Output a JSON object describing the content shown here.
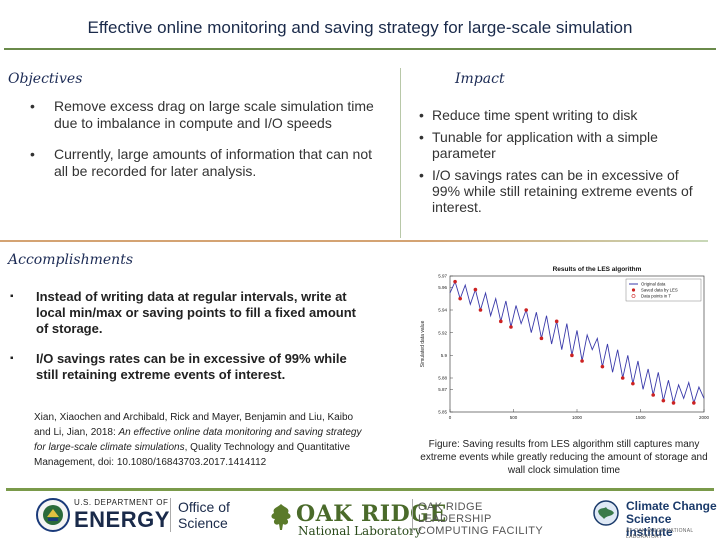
{
  "title": "Effective online monitoring and saving strategy for large-scale simulation",
  "objectives": {
    "heading": "Objectives",
    "items": [
      "Remove excess drag on large scale simulation time due to imbalance in compute and I/O speeds",
      "Currently, large amounts of information that can not all be recorded for later analysis."
    ]
  },
  "impact": {
    "heading": "Impact",
    "items": [
      "Reduce time spent writing to disk",
      "Tunable for application with a simple parameter",
      "I/O savings rates can be in excessive of 99% while still retaining extreme events of interest."
    ]
  },
  "accomplishments": {
    "heading": "Accomplishments",
    "items": [
      "Instead of writing data at regular intervals, write at local min/max or saving points to fill a fixed amount of storage.",
      "I/O savings rates can be in excessive of 99% while still retaining extreme events of interest."
    ],
    "citation": {
      "authors": "Xian, Xiaochen and Archibald, Rick and Mayer, Benjamin and Liu, Kaibo and Li, Jian, 2018: ",
      "title": "An effective online data monitoring and saving strategy for large-scale climate simulations",
      "rest": ", Quality Technology and Quantitative Management, doi: 10.1080/16843703.2017.1414112"
    }
  },
  "figure": {
    "caption": "Figure: Saving results from LES algorithm still captures many extreme events while greatly reducing the amount of storage and wall clock simulation time"
  },
  "chart_data": {
    "type": "line",
    "title": "Results of the LES algorithm",
    "ylabel": "Simulated data value",
    "xlabel": "",
    "xlim": [
      0,
      2000
    ],
    "ylim": [
      5.85,
      5.97
    ],
    "xticks": [
      "0",
      "500",
      "1000",
      "1500",
      "2000"
    ],
    "yticks": [
      "5.85",
      "5.87",
      "5.88",
      "5.9",
      "5.92",
      "5.94",
      "5.96",
      "5.97"
    ],
    "legend": [
      "Original data",
      "Saved data by LES",
      "Data points in T"
    ],
    "legend_position": "top-right",
    "colors": {
      "original": "#3a3aaa",
      "saved": "#cc2222",
      "t_points": "#cc2222"
    },
    "series": [
      {
        "name": "Original data",
        "x": [
          0,
          40,
          80,
          120,
          160,
          200,
          240,
          280,
          320,
          360,
          400,
          440,
          480,
          520,
          560,
          600,
          640,
          680,
          720,
          760,
          800,
          840,
          880,
          920,
          960,
          1000,
          1040,
          1080,
          1120,
          1160,
          1200,
          1240,
          1280,
          1320,
          1360,
          1400,
          1440,
          1480,
          1520,
          1560,
          1600,
          1640,
          1680,
          1720,
          1760,
          1800,
          1840,
          1880,
          1920,
          1960,
          2000
        ],
        "y": [
          5.955,
          5.965,
          5.95,
          5.962,
          5.945,
          5.958,
          5.94,
          5.955,
          5.935,
          5.95,
          5.93,
          5.948,
          5.925,
          5.944,
          5.928,
          5.94,
          5.92,
          5.938,
          5.915,
          5.935,
          5.91,
          5.93,
          5.905,
          5.928,
          5.9,
          5.922,
          5.895,
          5.918,
          5.905,
          5.915,
          5.89,
          5.91,
          5.885,
          5.905,
          5.88,
          5.9,
          5.875,
          5.895,
          5.87,
          5.888,
          5.865,
          5.885,
          5.86,
          5.878,
          5.858,
          5.874,
          5.862,
          5.876,
          5.858,
          5.872,
          5.862
        ]
      },
      {
        "name": "Saved data by LES",
        "x": [
          40,
          80,
          200,
          240,
          400,
          480,
          600,
          720,
          840,
          960,
          1040,
          1200,
          1360,
          1440,
          1600,
          1680,
          1760,
          1920
        ],
        "y": [
          5.965,
          5.95,
          5.958,
          5.94,
          5.93,
          5.925,
          5.94,
          5.915,
          5.93,
          5.9,
          5.895,
          5.89,
          5.88,
          5.875,
          5.865,
          5.86,
          5.858,
          5.858
        ]
      }
    ]
  },
  "logos": {
    "doe_line1": "U.S. DEPARTMENT OF",
    "doe_line2": "ENERGY",
    "doe_office": "Office of",
    "doe_science": "Science",
    "ornl_line1": "OAK RIDGE",
    "ornl_line2": "National Laboratory",
    "olcf_line1": "OAK RIDGE",
    "olcf_line2": "LEADERSHIP",
    "olcf_line3": "COMPUTING FACILITY",
    "ccsi_line1": "Climate Change",
    "ccsi_line2": "Science Institute",
    "ccsi_tag": "AT OAK RIDGE NATIONAL LABORATORY"
  }
}
